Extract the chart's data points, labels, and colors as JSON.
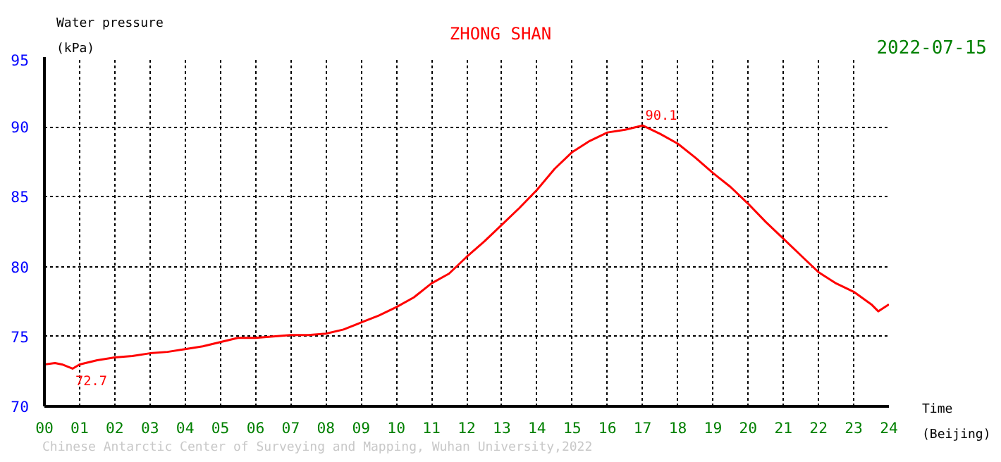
{
  "chart_data": {
    "type": "line",
    "title": "ZHONG SHAN",
    "subtitle": "2022-07-15",
    "xlabel": "Time\n(Beijing)",
    "ylabel": "Water pressure\n(kPa)",
    "series": [
      {
        "color": "#ff0000",
        "x": [
          0,
          0.3,
          0.5,
          0.8,
          1,
          1.5,
          2,
          2.5,
          3,
          3.5,
          4,
          4.5,
          5,
          5.5,
          6,
          6.5,
          7,
          7.5,
          8,
          8.5,
          9,
          9.5,
          10,
          10.5,
          11,
          11.5,
          12,
          12.5,
          13,
          13.5,
          14,
          14.5,
          15,
          15.5,
          16,
          16.5,
          17,
          17.5,
          18,
          18.5,
          19,
          19.5,
          20,
          20.5,
          21,
          21.5,
          22,
          22.5,
          23,
          23.5,
          23.7,
          24
        ],
        "values": [
          73.0,
          73.1,
          73.0,
          72.7,
          73.0,
          73.3,
          73.5,
          73.6,
          73.8,
          73.9,
          74.1,
          74.3,
          74.6,
          74.9,
          74.9,
          75.0,
          75.1,
          75.1,
          75.2,
          75.5,
          76.0,
          76.5,
          77.1,
          77.8,
          78.8,
          79.5,
          80.7,
          81.8,
          83.0,
          84.2,
          85.5,
          87.0,
          88.2,
          89.0,
          89.6,
          89.8,
          90.1,
          89.5,
          88.8,
          87.8,
          86.7,
          85.7,
          84.5,
          83.2,
          82.0,
          80.8,
          79.6,
          78.8,
          78.2,
          77.3,
          76.8,
          77.3
        ]
      }
    ],
    "xlim": [
      0,
      24
    ],
    "ylim": [
      70,
      95
    ],
    "xticks": [
      {
        "value": 0,
        "label": "00"
      },
      {
        "value": 1,
        "label": "01"
      },
      {
        "value": 2,
        "label": "02"
      },
      {
        "value": 3,
        "label": "03"
      },
      {
        "value": 4,
        "label": "04"
      },
      {
        "value": 5,
        "label": "05"
      },
      {
        "value": 6,
        "label": "06"
      },
      {
        "value": 7,
        "label": "07"
      },
      {
        "value": 8,
        "label": "08"
      },
      {
        "value": 9,
        "label": "09"
      },
      10,
      11,
      12,
      13,
      14,
      15,
      16,
      17,
      18,
      19,
      20,
      21,
      22,
      23,
      24
    ],
    "yticks": [
      70,
      75,
      80,
      85,
      90,
      95
    ],
    "grid": true,
    "marker": "none",
    "line_style": "solid",
    "annotations": [
      {
        "text": "72.7",
        "x": 0.8,
        "y": 72.7
      },
      {
        "text": "90.1",
        "x": 17,
        "y": 90.1
      },
      "Chinese Antarctic Center of Surveying and Mapping, Wuhan University,2022"
    ]
  }
}
